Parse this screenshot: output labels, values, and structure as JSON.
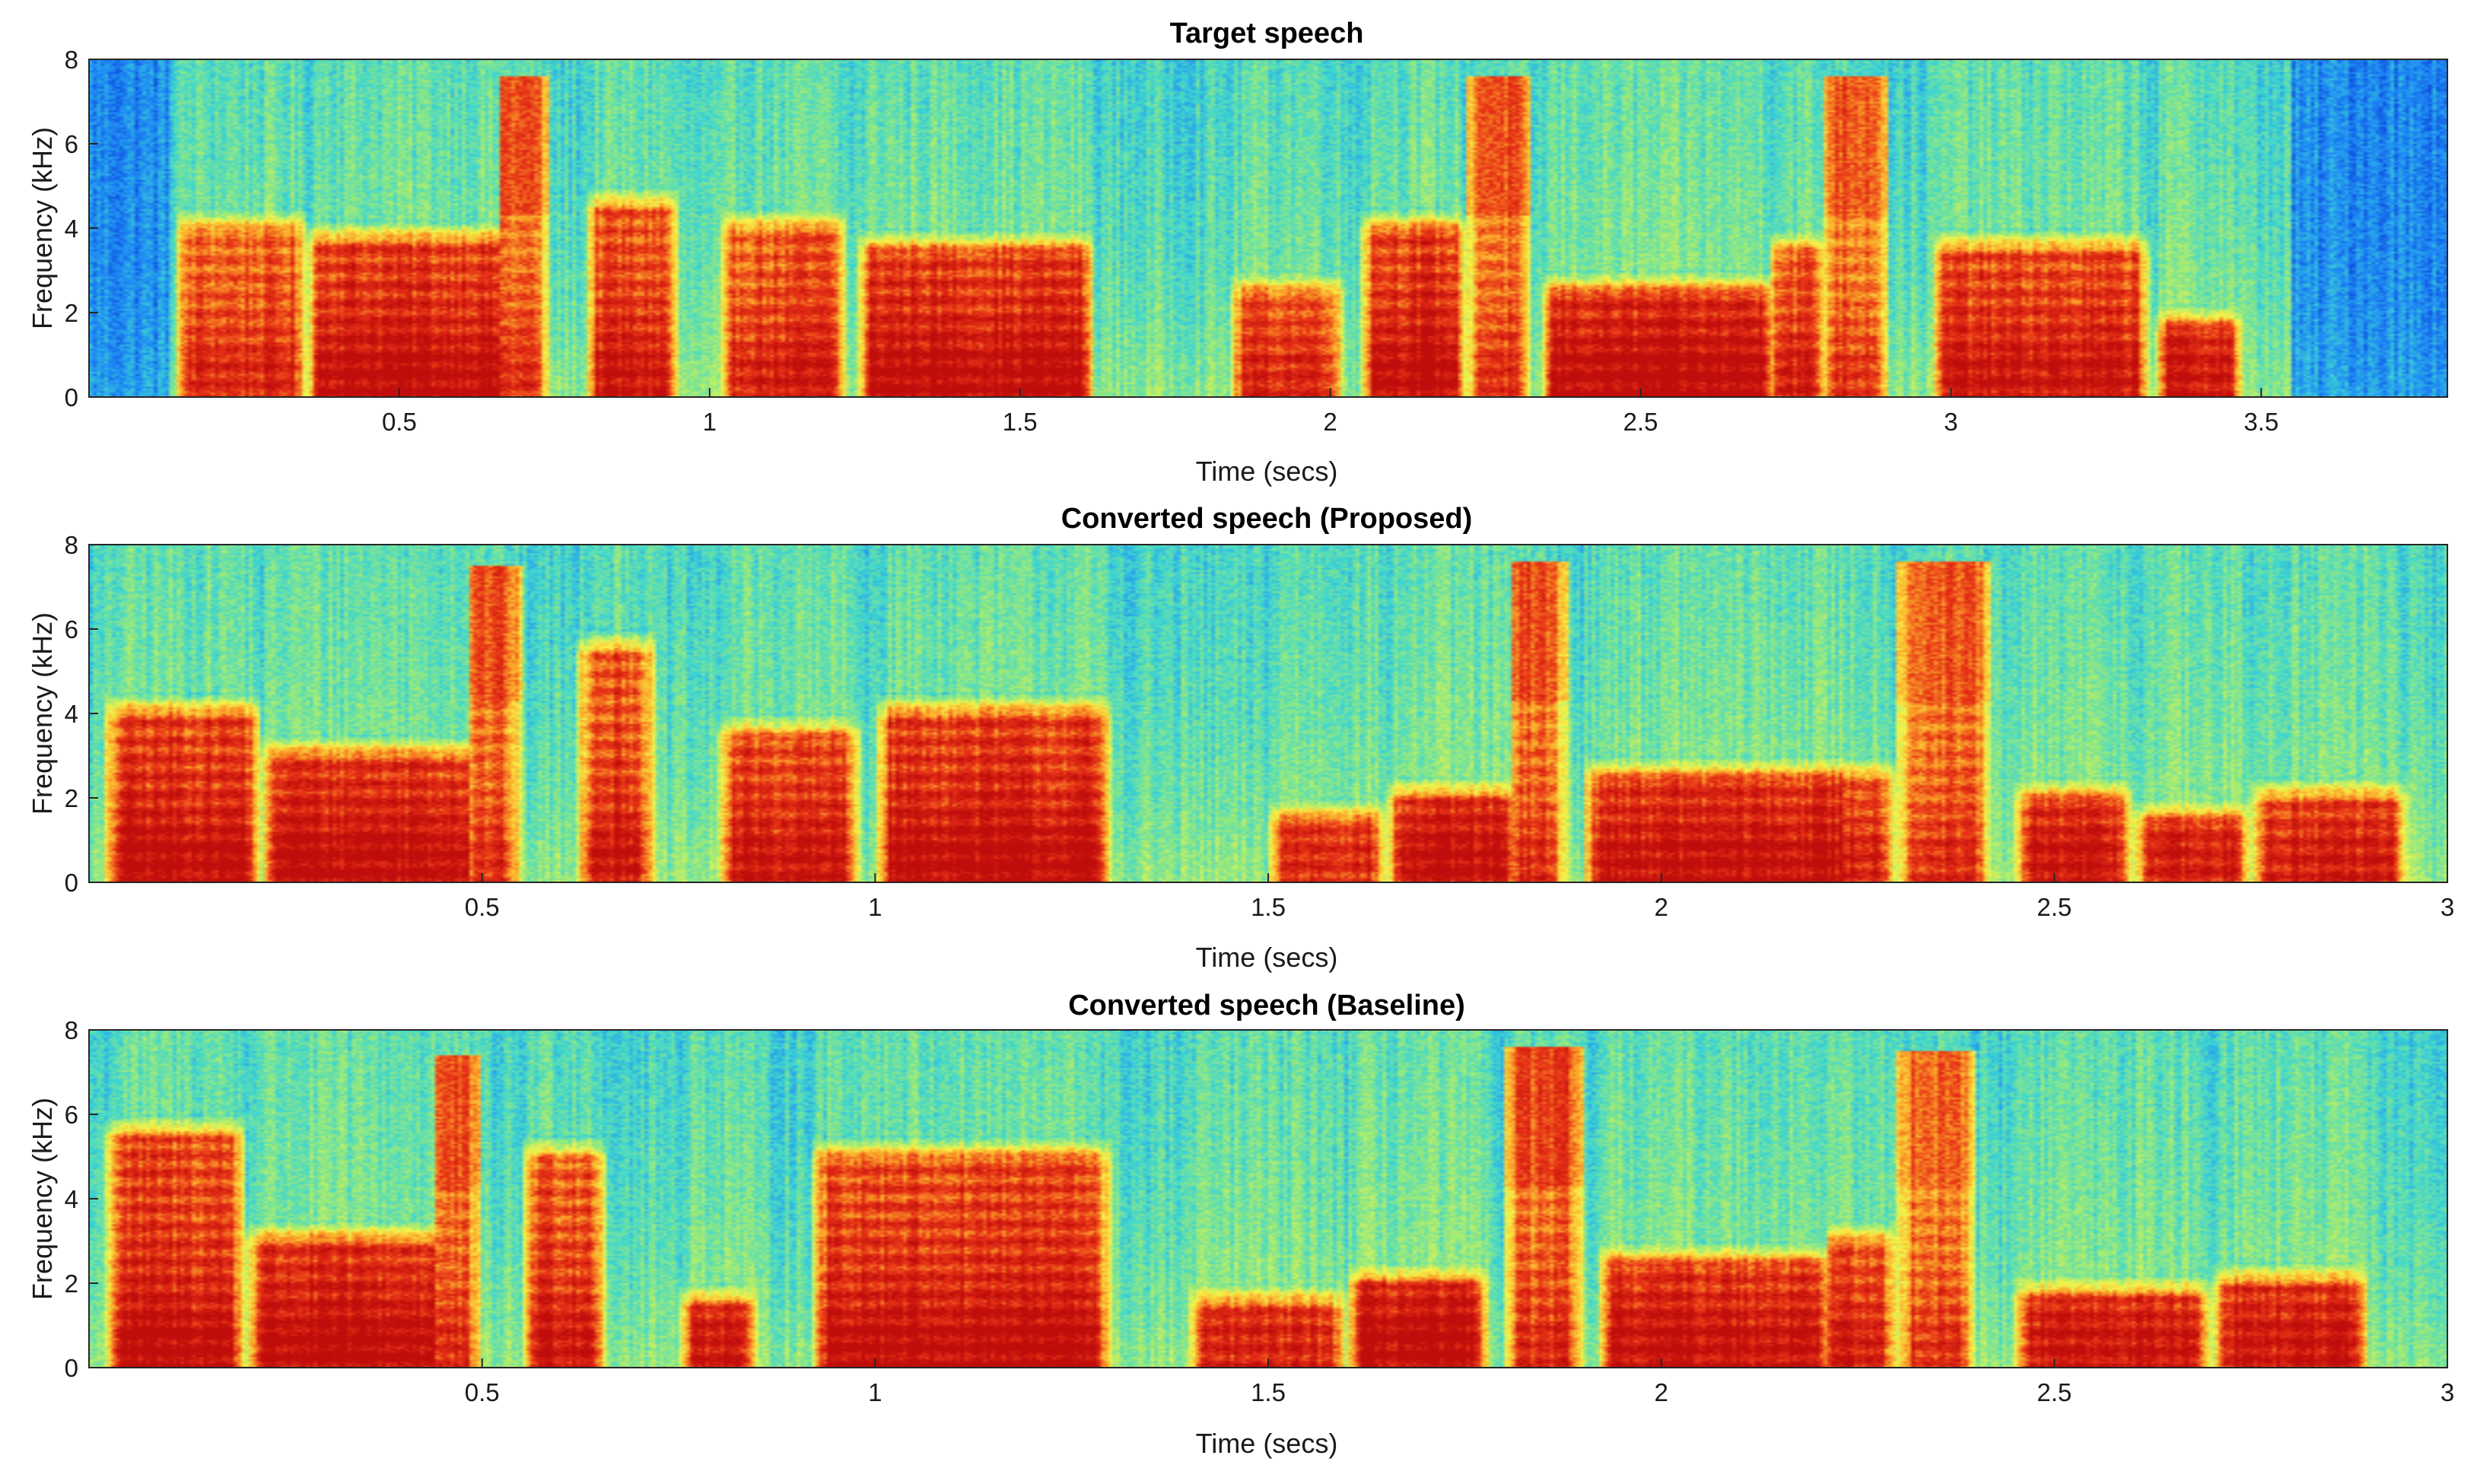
{
  "colors": {
    "colormap": [
      "#0a3fd8",
      "#1f8cf5",
      "#3fd6d0",
      "#9aea7a",
      "#f7f44a",
      "#fba62a",
      "#e83417",
      "#c00d0b"
    ],
    "axis": "#262626"
  },
  "chart_data": [
    {
      "type": "heatmap",
      "title": "Target speech",
      "xlabel": "Time (secs)",
      "ylabel": "Frequency (kHz)",
      "xlim": [
        0,
        3.8
      ],
      "ylim": [
        0,
        8
      ],
      "xticks": [
        0.5,
        1,
        1.5,
        2,
        2.5,
        3,
        3.5
      ],
      "xtick_labels": [
        "0.5",
        "1",
        "1.5",
        "2",
        "2.5",
        "3",
        "3.5"
      ],
      "yticks": [
        0,
        2,
        4,
        6,
        8
      ],
      "ytick_labels": [
        "0",
        "2",
        "4",
        "6",
        "8"
      ],
      "segments": [
        {
          "t0": 0.14,
          "t1": 0.35,
          "e": 0.8,
          "fh": 4.5,
          "hf": 0
        },
        {
          "t0": 0.35,
          "t1": 0.68,
          "e": 1.0,
          "fh": 4.2,
          "hf": 0
        },
        {
          "t0": 0.64,
          "t1": 0.74,
          "e": 0.75,
          "fh": 7.6,
          "hf": 0.95
        },
        {
          "t0": 0.8,
          "t1": 0.95,
          "e": 0.9,
          "fh": 5.0,
          "hf": 0
        },
        {
          "t0": 1.02,
          "t1": 1.22,
          "e": 0.85,
          "fh": 4.5,
          "hf": 0
        },
        {
          "t0": 1.24,
          "t1": 1.62,
          "e": 1.0,
          "fh": 4.0,
          "hf": 0
        },
        {
          "t0": 1.84,
          "t1": 2.02,
          "e": 0.8,
          "fh": 3.0,
          "hf": 0
        },
        {
          "t0": 2.05,
          "t1": 2.22,
          "e": 1.0,
          "fh": 4.5,
          "hf": 0
        },
        {
          "t0": 2.22,
          "t1": 2.32,
          "e": 0.75,
          "fh": 7.6,
          "hf": 0.95
        },
        {
          "t0": 2.34,
          "t1": 2.72,
          "e": 1.0,
          "fh": 3.0,
          "hf": 0
        },
        {
          "t0": 2.7,
          "t1": 2.8,
          "e": 0.85,
          "fh": 4.0,
          "hf": 0
        },
        {
          "t0": 2.79,
          "t1": 2.9,
          "e": 0.75,
          "fh": 7.6,
          "hf": 0.95
        },
        {
          "t0": 2.97,
          "t1": 3.32,
          "e": 0.9,
          "fh": 4.0,
          "hf": 0
        },
        {
          "t0": 3.33,
          "t1": 3.47,
          "e": 0.9,
          "fh": 2.2,
          "hf": 0
        }
      ]
    },
    {
      "type": "heatmap",
      "title": "Converted speech (Proposed)",
      "xlabel": "Time (secs)",
      "ylabel": "Frequency (kHz)",
      "xlim": [
        0,
        3.0
      ],
      "ylim": [
        0,
        8
      ],
      "xticks": [
        0.5,
        1,
        1.5,
        2,
        2.5,
        3
      ],
      "xtick_labels": [
        "0.5",
        "1",
        "1.5",
        "2",
        "2.5",
        "3"
      ],
      "yticks": [
        0,
        2,
        4,
        6,
        8
      ],
      "ytick_labels": [
        "0",
        "2",
        "4",
        "6",
        "8"
      ],
      "segments": [
        {
          "t0": 0.02,
          "t1": 0.22,
          "e": 1.0,
          "fh": 4.5,
          "hf": 0
        },
        {
          "t0": 0.22,
          "t1": 0.5,
          "e": 1.0,
          "fh": 3.5,
          "hf": 0
        },
        {
          "t0": 0.47,
          "t1": 0.55,
          "e": 0.75,
          "fh": 7.5,
          "hf": 0.95
        },
        {
          "t0": 0.62,
          "t1": 0.72,
          "e": 0.95,
          "fh": 6.0,
          "hf": 0
        },
        {
          "t0": 0.8,
          "t1": 0.98,
          "e": 0.9,
          "fh": 4.0,
          "hf": 0
        },
        {
          "t0": 1.0,
          "t1": 1.3,
          "e": 1.0,
          "fh": 4.5,
          "hf": 0
        },
        {
          "t0": 1.5,
          "t1": 1.65,
          "e": 0.8,
          "fh": 2.0,
          "hf": 0
        },
        {
          "t0": 1.65,
          "t1": 1.82,
          "e": 0.95,
          "fh": 2.5,
          "hf": 0
        },
        {
          "t0": 1.8,
          "t1": 1.88,
          "e": 0.75,
          "fh": 7.6,
          "hf": 0.95
        },
        {
          "t0": 1.9,
          "t1": 2.25,
          "e": 0.95,
          "fh": 3.0,
          "hf": 0
        },
        {
          "t0": 2.2,
          "t1": 2.3,
          "e": 0.85,
          "fh": 3.0,
          "hf": 0
        },
        {
          "t0": 2.3,
          "t1": 2.42,
          "e": 0.75,
          "fh": 7.6,
          "hf": 0.85
        },
        {
          "t0": 2.45,
          "t1": 2.6,
          "e": 0.9,
          "fh": 2.5,
          "hf": 0
        },
        {
          "t0": 2.6,
          "t1": 2.75,
          "e": 0.85,
          "fh": 2.0,
          "hf": 0
        },
        {
          "t0": 2.75,
          "t1": 2.95,
          "e": 0.85,
          "fh": 2.5,
          "hf": 0
        }
      ]
    },
    {
      "type": "heatmap",
      "title": "Converted speech (Baseline)",
      "xlabel": "Time (secs)",
      "ylabel": "Frequency (kHz)",
      "xlim": [
        0,
        3.0
      ],
      "ylim": [
        0,
        8
      ],
      "xticks": [
        0.5,
        1,
        1.5,
        2,
        2.5,
        3
      ],
      "xtick_labels": [
        "0.5",
        "1",
        "1.5",
        "2",
        "2.5",
        "3"
      ],
      "yticks": [
        0,
        2,
        4,
        6,
        8
      ],
      "ytick_labels": [
        "0",
        "2",
        "4",
        "6",
        "8"
      ],
      "segments": [
        {
          "t0": 0.02,
          "t1": 0.2,
          "e": 1.0,
          "fh": 6.0,
          "hf": 0
        },
        {
          "t0": 0.2,
          "t1": 0.46,
          "e": 1.0,
          "fh": 3.5,
          "hf": 0
        },
        {
          "t0": 0.42,
          "t1": 0.5,
          "e": 0.75,
          "fh": 7.4,
          "hf": 0.9
        },
        {
          "t0": 0.55,
          "t1": 0.66,
          "e": 0.95,
          "fh": 5.5,
          "hf": 0
        },
        {
          "t0": 0.75,
          "t1": 0.85,
          "e": 0.9,
          "fh": 2.0,
          "hf": 0
        },
        {
          "t0": 0.92,
          "t1": 1.3,
          "e": 1.0,
          "fh": 5.5,
          "hf": 0
        },
        {
          "t0": 1.4,
          "t1": 1.6,
          "e": 0.8,
          "fh": 2.0,
          "hf": 0
        },
        {
          "t0": 1.6,
          "t1": 1.78,
          "e": 1.0,
          "fh": 2.5,
          "hf": 0
        },
        {
          "t0": 1.8,
          "t1": 1.9,
          "e": 0.75,
          "fh": 7.6,
          "hf": 1.0
        },
        {
          "t0": 1.92,
          "t1": 2.22,
          "e": 0.95,
          "fh": 3.0,
          "hf": 0
        },
        {
          "t0": 2.2,
          "t1": 2.3,
          "e": 0.85,
          "fh": 3.5,
          "hf": 0
        },
        {
          "t0": 2.3,
          "t1": 2.4,
          "e": 0.75,
          "fh": 7.5,
          "hf": 0.85
        },
        {
          "t0": 2.45,
          "t1": 2.7,
          "e": 0.9,
          "fh": 2.2,
          "hf": 0
        },
        {
          "t0": 2.7,
          "t1": 2.9,
          "e": 0.9,
          "fh": 2.5,
          "hf": 0
        }
      ]
    }
  ]
}
